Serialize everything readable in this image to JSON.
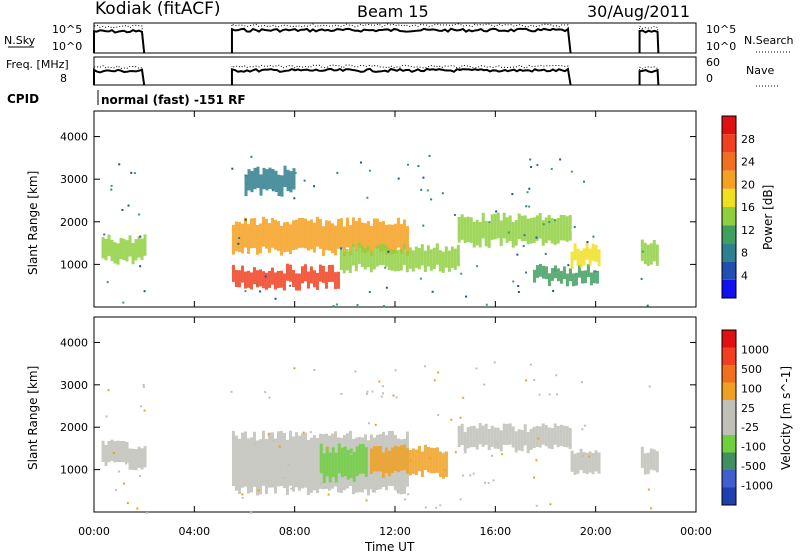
{
  "header": {
    "site": "Kodiak (fitACF)",
    "beam": "Beam 15",
    "date": "30/Aug/2011"
  },
  "chart_data": [
    {
      "type": "line",
      "panel": "noise",
      "left_label": "N.Sky",
      "right_label": "N.Search",
      "left_ticks": [
        "10^5",
        "10^0"
      ],
      "right_ticks": [
        "10^5",
        "10^0"
      ],
      "x": [
        0.0,
        2.0,
        5.5,
        19.0,
        21.75,
        22.5
      ],
      "series": [
        {
          "style": "solid",
          "values": [
            3.6,
            3.6,
            3.8,
            3.8,
            3.5,
            3.5
          ]
        },
        {
          "style": "dotted",
          "values": [
            4.4,
            4.4,
            4.6,
            4.6,
            4.3,
            4.3
          ]
        }
      ],
      "ylim": [
        0,
        5
      ]
    },
    {
      "type": "line",
      "panel": "freq-nave",
      "left_label": "Freq. [MHz]",
      "right_label": "Nave",
      "left_ticks": [
        "8"
      ],
      "right_ticks": [
        "60",
        "0"
      ],
      "x": [
        0.0,
        2.0,
        5.5,
        19.0,
        21.75,
        22.5
      ],
      "series": [
        {
          "style": "solid",
          "values": [
            10.5,
            10.5,
            10.6,
            10.6,
            10.4,
            10.4
          ]
        },
        {
          "style": "dotted",
          "values": [
            11.2,
            11.2,
            11.3,
            11.3,
            11.0,
            11.0
          ]
        }
      ],
      "ylim": [
        8,
        13
      ]
    },
    {
      "type": "text",
      "panel": "cpid",
      "label": "CPID",
      "value": "normal (fast) -151 RF"
    },
    {
      "type": "heatmap",
      "panel": "power",
      "ylabel": "Slant Range [km]",
      "yticks": [
        1000,
        2000,
        3000,
        4000
      ],
      "ylim": [
        0,
        4600
      ],
      "xlim": [
        0,
        24
      ],
      "colorbar": {
        "label": "Power [dB]",
        "ticks": [
          "4",
          "8",
          "12",
          "16",
          "20",
          "24",
          "28"
        ],
        "colors": [
          "#1010f0",
          "#1f4fb0",
          "#2f7f8f",
          "#3f9f5f",
          "#8fcf3f",
          "#f0e020",
          "#f5a020",
          "#f07020",
          "#f04020",
          "#e01010"
        ]
      },
      "bands": [
        {
          "t0": 0.3,
          "t1": 2.0,
          "r0": 1100,
          "r1": 1600,
          "level": 4
        },
        {
          "t0": 5.5,
          "t1": 9.8,
          "r0": 500,
          "r1": 900,
          "level": 8
        },
        {
          "t0": 5.5,
          "t1": 12.5,
          "r0": 1300,
          "r1": 2000,
          "level": 6
        },
        {
          "t0": 9.8,
          "t1": 14.5,
          "r0": 900,
          "r1": 1400,
          "level": 4
        },
        {
          "t0": 14.5,
          "t1": 19.0,
          "r0": 1500,
          "r1": 2100,
          "level": 4
        },
        {
          "t0": 17.5,
          "t1": 20.1,
          "r0": 600,
          "r1": 900,
          "level": 3
        },
        {
          "t0": 6.0,
          "t1": 8.0,
          "r0": 2700,
          "r1": 3200,
          "level": 2
        },
        {
          "t0": 21.8,
          "t1": 22.5,
          "r0": 1000,
          "r1": 1500,
          "level": 4
        },
        {
          "t0": 19.0,
          "t1": 20.1,
          "r0": 1000,
          "r1": 1400,
          "level": 5
        }
      ]
    },
    {
      "type": "heatmap",
      "panel": "velocity",
      "ylabel": "Slant Range [km]",
      "yticks": [
        1000,
        2000,
        3000,
        4000
      ],
      "ylim": [
        0,
        4600
      ],
      "xlim": [
        0,
        24
      ],
      "xticks": [
        "00:00",
        "04:00",
        "08:00",
        "12:00",
        "16:00",
        "20:00",
        "00:00"
      ],
      "xlabel": "Time UT",
      "colorbar": {
        "label": "Velocity [m s^-1]",
        "ticks": [
          "1000",
          "500",
          "100",
          "25",
          "-25",
          "-100",
          "-500",
          "-1000"
        ],
        "colors": [
          "#1f3faf",
          "#3f5fcf",
          "#3f8f5f",
          "#6fcf3f",
          "#c0c0b8",
          "#c0c0b8",
          "#f0a020",
          "#f07020",
          "#f04020",
          "#e01010"
        ]
      },
      "bands": [
        {
          "t0": 0.3,
          "t1": 2.0,
          "r0": 1100,
          "r1": 1600,
          "color": "#c0c0b8"
        },
        {
          "t0": 5.5,
          "t1": 12.5,
          "r0": 500,
          "r1": 1800,
          "color": "#c0c0b8"
        },
        {
          "t0": 9.0,
          "t1": 10.8,
          "r0": 800,
          "r1": 1500,
          "color": "#6fcf3f"
        },
        {
          "t0": 11.0,
          "t1": 14.0,
          "r0": 900,
          "r1": 1500,
          "color": "#f0a020"
        },
        {
          "t0": 14.5,
          "t1": 19.0,
          "r0": 1500,
          "r1": 2000,
          "color": "#c0c0b8"
        },
        {
          "t0": 21.8,
          "t1": 22.5,
          "r0": 1000,
          "r1": 1500,
          "color": "#c0c0b8"
        },
        {
          "t0": 19.0,
          "t1": 20.1,
          "r0": 900,
          "r1": 1400,
          "color": "#c0c0b8"
        }
      ]
    }
  ]
}
